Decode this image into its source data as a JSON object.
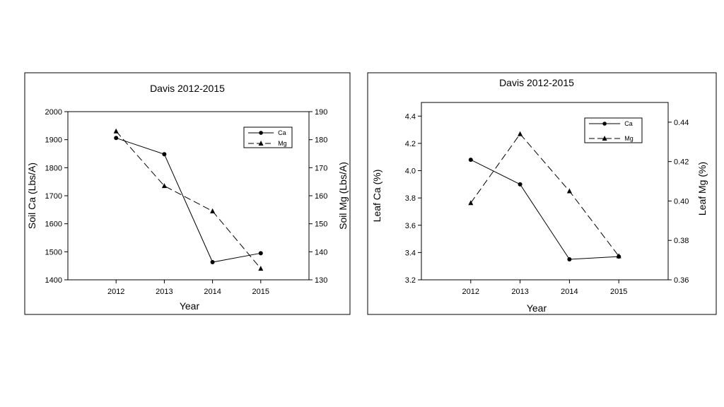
{
  "chart_data": [
    {
      "type": "line",
      "title": "Davis 2012-2015",
      "xlabel": "Year",
      "ylabel": "Soil Ca (Lbs/A)",
      "y2label": "Soil Mg (Lbs/A)",
      "categories": [
        "2012",
        "2013",
        "2014",
        "2015"
      ],
      "ylim": [
        1400,
        2000
      ],
      "y2lim": [
        130,
        190
      ],
      "yticks": [
        "1400",
        "1500",
        "1600",
        "1700",
        "1800",
        "1900",
        "2000"
      ],
      "y2ticks": [
        "130",
        "140",
        "150",
        "160",
        "170",
        "180",
        "190"
      ],
      "series": [
        {
          "name": "Ca",
          "axis": "left",
          "marker": "circle",
          "dash": "none",
          "values": [
            1906,
            1848,
            1463,
            1495
          ]
        },
        {
          "name": "Mg",
          "axis": "right",
          "marker": "triangle",
          "dash": "dashed",
          "values": [
            183,
            163.5,
            154.5,
            134
          ]
        }
      ],
      "legend": "top-right"
    },
    {
      "type": "line",
      "title": "Davis 2012-2015",
      "xlabel": "Year",
      "ylabel": "Leaf Ca (%)",
      "y2label": "Leaf Mg (%)",
      "categories": [
        "2012",
        "2013",
        "2014",
        "2015"
      ],
      "ylim": [
        3.2,
        4.5
      ],
      "y2lim": [
        0.36,
        0.45
      ],
      "yticks": [
        "3.2",
        "3.4",
        "3.6",
        "3.8",
        "4.0",
        "4.2",
        "4.4"
      ],
      "y2ticks": [
        "0.36",
        "0.38",
        "0.40",
        "0.42",
        "0.44"
      ],
      "series": [
        {
          "name": "Ca",
          "axis": "left",
          "marker": "circle",
          "dash": "none",
          "values": [
            4.08,
            3.9,
            3.35,
            3.37
          ]
        },
        {
          "name": "Mg",
          "axis": "right",
          "marker": "triangle",
          "dash": "dashed",
          "values": [
            0.399,
            0.434,
            0.405,
            0.372
          ]
        }
      ],
      "legend": "top-right"
    }
  ]
}
